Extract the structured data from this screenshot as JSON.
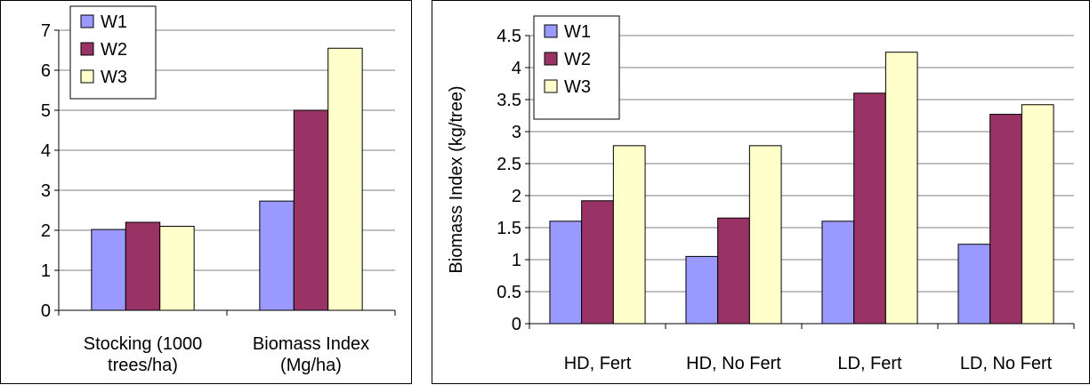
{
  "chart_data": [
    {
      "type": "bar",
      "categories": [
        [
          "Stocking (1000",
          "trees/ha)"
        ],
        [
          "Biomass Index",
          "(Mg/ha)"
        ]
      ],
      "series": [
        {
          "name": "W1",
          "color": "#9999ff",
          "values": [
            2.02,
            2.73
          ]
        },
        {
          "name": "W2",
          "color": "#993366",
          "values": [
            2.2,
            5.0
          ]
        },
        {
          "name": "W3",
          "color": "#ffffcc",
          "values": [
            2.1,
            6.55
          ]
        }
      ],
      "xlabel": "",
      "ylabel": "",
      "ylim": [
        0,
        7
      ],
      "yticks": [
        0,
        1,
        2,
        3,
        4,
        5,
        6,
        7
      ],
      "ytick_labels": [
        "0",
        "1",
        "2",
        "3",
        "4",
        "5",
        "6",
        "7"
      ],
      "grid": true,
      "legend": "top-left"
    },
    {
      "type": "bar",
      "categories": [
        [
          "HD, Fert"
        ],
        [
          "HD, No Fert"
        ],
        [
          "LD, Fert"
        ],
        [
          "LD, No Fert"
        ]
      ],
      "series": [
        {
          "name": "W1",
          "color": "#9999ff",
          "values": [
            1.6,
            1.05,
            1.6,
            1.24
          ]
        },
        {
          "name": "W2",
          "color": "#993366",
          "values": [
            1.92,
            1.65,
            3.6,
            3.27
          ]
        },
        {
          "name": "W3",
          "color": "#ffffcc",
          "values": [
            2.78,
            2.78,
            4.24,
            3.42
          ]
        }
      ],
      "xlabel": "",
      "ylabel": "Biomass Index (kg/tree)",
      "ylim": [
        0,
        4.5
      ],
      "yticks": [
        0,
        0.5,
        1,
        1.5,
        2,
        2.5,
        3,
        3.5,
        4,
        4.5
      ],
      "ytick_labels": [
        "0",
        "0.5",
        "1",
        "1.5",
        "2",
        "2.5",
        "3",
        "3.5",
        "4",
        "4.5"
      ],
      "grid": true,
      "legend": "top-left"
    }
  ]
}
